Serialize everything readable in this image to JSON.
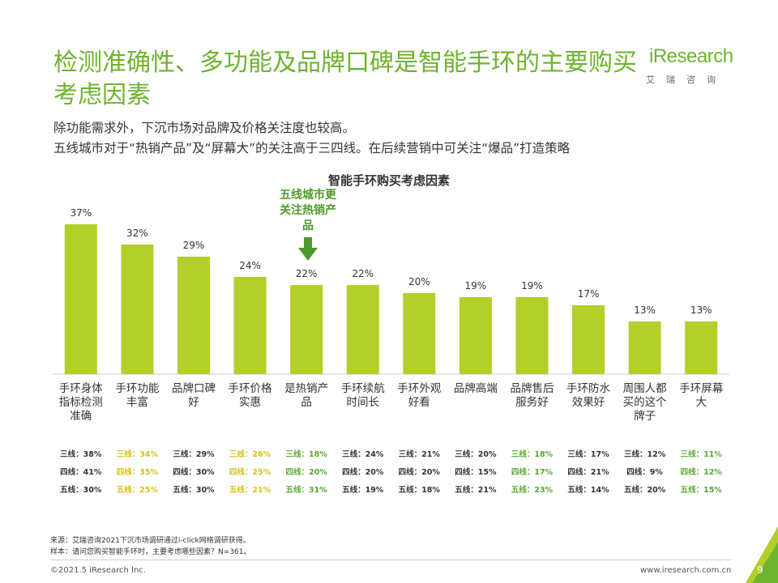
{
  "title": "检测准确性、多功能及品牌口碑是智能手环的主要购买考虑因素",
  "logo": {
    "main": "Research",
    "i_letter": "i",
    "sub": "艾瑞咨询"
  },
  "subtitle": [
    "除功能需求外，下沉市场对品牌及价格关注度也较高。",
    "五线城市对于“热销产品”及“屏幕大”的关注高于三四线。在后续营销中可关注“爆品”打造策略"
  ],
  "callout": "五线城市更关注热销产品",
  "colors": {
    "accent": "#6fb32e",
    "bar": "#b2cf2a",
    "highlight_yellow": "#d6c11a",
    "highlight_green": "#5aa830"
  },
  "chart_data": {
    "type": "bar",
    "title": "智能手环购买考虑因素",
    "categories": [
      "手环身体指标检测准确",
      "手环功能丰富",
      "品牌口碑好",
      "手环价格实惠",
      "是热销产品",
      "手环续航时间长",
      "手环外观好看",
      "品牌高端",
      "品牌售后服务好",
      "手环防水效果好",
      "周围人都买的这个牌子",
      "手环屏幕大"
    ],
    "values": [
      37,
      32,
      29,
      24,
      22,
      22,
      20,
      19,
      19,
      17,
      13,
      13
    ],
    "value_labels": [
      "37%",
      "32%",
      "29%",
      "24%",
      "22%",
      "22%",
      "20%",
      "19%",
      "19%",
      "17%",
      "13%",
      "13%"
    ],
    "ylim": [
      0,
      40
    ],
    "grid": false,
    "tiers": [
      {
        "prefix": "三线：",
        "values": [
          "38%",
          "34%",
          "29%",
          "26%",
          "18%",
          "24%",
          "21%",
          "20%",
          "18%",
          "17%",
          "12%",
          "11%"
        ]
      },
      {
        "prefix": "四线：",
        "values": [
          "41%",
          "35%",
          "30%",
          "25%",
          "20%",
          "20%",
          "20%",
          "15%",
          "17%",
          "21%",
          "9%",
          "12%"
        ]
      },
      {
        "prefix": "五线：",
        "values": [
          "30%",
          "25%",
          "30%",
          "21%",
          "31%",
          "19%",
          "18%",
          "21%",
          "23%",
          "14%",
          "20%",
          "15%"
        ]
      }
    ],
    "highlight_columns": {
      "yellow": [
        1,
        3
      ],
      "green": [
        4,
        8,
        11
      ]
    }
  },
  "source": [
    "来源：艾瑞咨询2021下沉市场调研通过i-click网络调研获得。",
    "样本：请问您购买智能手环时，主要考虑哪些因素？N=361。"
  ],
  "footer": {
    "copyright": "©2021.5 iResearch Inc.",
    "site": "www.iresearch.com.cn",
    "page": "9"
  }
}
